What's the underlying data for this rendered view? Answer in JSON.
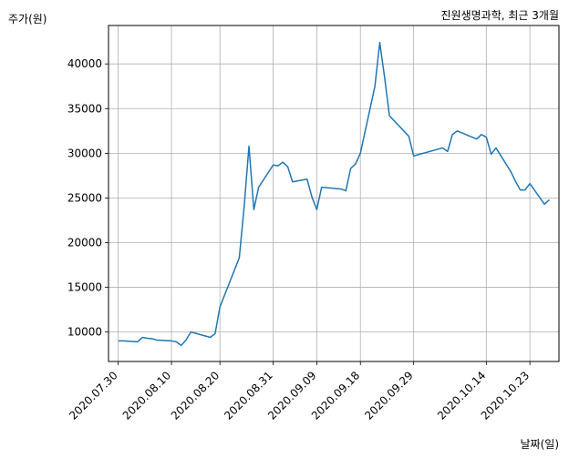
{
  "chart_data": {
    "type": "line",
    "title": "진원생명과학, 최근 3개월",
    "xlabel": "날짜(일)",
    "ylabel": "주가(원)",
    "grid": true,
    "ylim": [
      6700,
      44300
    ],
    "xlim": [
      "2020-07-28",
      "2020-10-29"
    ],
    "x_ticks": [
      "2020-07-30",
      "2020-08-10",
      "2020-08-20",
      "2020-08-31",
      "2020-09-09",
      "2020-09-18",
      "2020-09-29",
      "2020-10-14",
      "2020-10-23"
    ],
    "x_tick_labels": [
      "2020.07.30",
      "2020.08.10",
      "2020.08.20",
      "2020.08.31",
      "2020.09.09",
      "2020.09.18",
      "2020.09.29",
      "2020.10.14",
      "2020.10.23"
    ],
    "y_ticks": [
      10000,
      15000,
      20000,
      25000,
      30000,
      35000,
      40000
    ],
    "series": [
      {
        "color": "#1f77b4",
        "x": [
          "2020-07-30",
          "2020-07-31",
          "2020-08-03",
          "2020-08-04",
          "2020-08-05",
          "2020-08-06",
          "2020-08-07",
          "2020-08-10",
          "2020-08-11",
          "2020-08-12",
          "2020-08-13",
          "2020-08-14",
          "2020-08-18",
          "2020-08-19",
          "2020-08-20",
          "2020-08-24",
          "2020-08-25",
          "2020-08-26",
          "2020-08-27",
          "2020-08-28",
          "2020-08-31",
          "2020-09-01",
          "2020-09-02",
          "2020-09-03",
          "2020-09-04",
          "2020-09-07",
          "2020-09-08",
          "2020-09-09",
          "2020-09-10",
          "2020-09-14",
          "2020-09-15",
          "2020-09-16",
          "2020-09-17",
          "2020-09-18",
          "2020-09-21",
          "2020-09-22",
          "2020-09-23",
          "2020-09-24",
          "2020-09-28",
          "2020-09-29",
          "2020-10-05",
          "2020-10-06",
          "2020-10-07",
          "2020-10-08",
          "2020-10-12",
          "2020-10-13",
          "2020-10-14",
          "2020-10-15",
          "2020-10-16",
          "2020-10-19",
          "2020-10-20",
          "2020-10-21",
          "2020-10-22",
          "2020-10-23",
          "2020-10-26",
          "2020-10-27"
        ],
        "y": [
          9000,
          9000,
          8900,
          9400,
          9300,
          9250,
          9100,
          9000,
          8900,
          8500,
          9100,
          10000,
          9400,
          9800,
          12800,
          18300,
          24000,
          30800,
          23700,
          26200,
          28700,
          28600,
          29000,
          28500,
          26800,
          27100,
          25100,
          23700,
          26200,
          26000,
          25800,
          28300,
          28800,
          30000,
          37500,
          42400,
          38500,
          34200,
          31900,
          29700,
          30600,
          30200,
          32100,
          32500,
          31600,
          32100,
          31800,
          29900,
          30600,
          28000,
          26900,
          25900,
          25900,
          26600,
          24300,
          24800
        ]
      }
    ]
  }
}
